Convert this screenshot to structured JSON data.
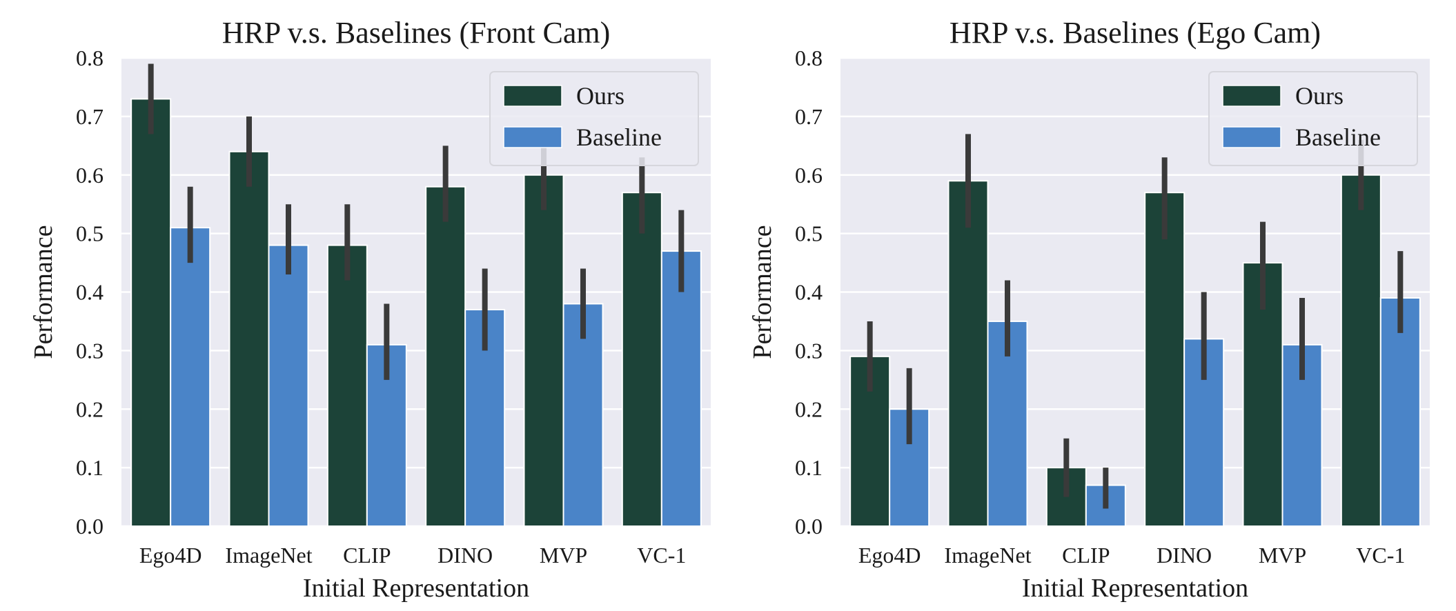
{
  "colors": {
    "ours": "#1c4338",
    "baseline": "#4a84c8",
    "error": "#3a3a3a",
    "plot_bg": "#eaeaf2",
    "grid": "#ffffff"
  },
  "chart_data": [
    {
      "type": "bar",
      "title": "HRP v.s. Baselines (Front Cam)",
      "xlabel": "Initial Representation",
      "ylabel": "Performance",
      "ylim": [
        0,
        0.8
      ],
      "yticks": [
        "0.0",
        "0.1",
        "0.2",
        "0.3",
        "0.4",
        "0.5",
        "0.6",
        "0.7",
        "0.8"
      ],
      "categories": [
        "Ego4D",
        "ImageNet",
        "CLIP",
        "DINO",
        "MVP",
        "VC-1"
      ],
      "legend": {
        "placement": "top-right",
        "entries": [
          "Ours",
          "Baseline"
        ]
      },
      "grid": true,
      "series": [
        {
          "name": "Ours",
          "values": [
            0.73,
            0.64,
            0.48,
            0.58,
            0.6,
            0.57
          ],
          "err_low": [
            0.67,
            0.58,
            0.42,
            0.52,
            0.54,
            0.5
          ],
          "err_high": [
            0.79,
            0.7,
            0.55,
            0.65,
            0.67,
            0.63
          ]
        },
        {
          "name": "Baseline",
          "values": [
            0.51,
            0.48,
            0.31,
            0.37,
            0.38,
            0.47
          ],
          "err_low": [
            0.45,
            0.43,
            0.25,
            0.3,
            0.32,
            0.4
          ],
          "err_high": [
            0.58,
            0.55,
            0.38,
            0.44,
            0.44,
            0.54
          ]
        }
      ]
    },
    {
      "type": "bar",
      "title": "HRP v.s. Baselines (Ego Cam)",
      "xlabel": "Initial Representation",
      "ylabel": "Performance",
      "ylim": [
        0,
        0.8
      ],
      "yticks": [
        "0.0",
        "0.1",
        "0.2",
        "0.3",
        "0.4",
        "0.5",
        "0.6",
        "0.7",
        "0.8"
      ],
      "categories": [
        "Ego4D",
        "ImageNet",
        "CLIP",
        "DINO",
        "MVP",
        "VC-1"
      ],
      "legend": {
        "placement": "top-right",
        "entries": [
          "Ours",
          "Baseline"
        ]
      },
      "grid": true,
      "series": [
        {
          "name": "Ours",
          "values": [
            0.29,
            0.59,
            0.1,
            0.57,
            0.45,
            0.6
          ],
          "err_low": [
            0.23,
            0.51,
            0.05,
            0.49,
            0.37,
            0.54
          ],
          "err_high": [
            0.35,
            0.67,
            0.15,
            0.63,
            0.52,
            0.66
          ]
        },
        {
          "name": "Baseline",
          "values": [
            0.2,
            0.35,
            0.07,
            0.32,
            0.31,
            0.39
          ],
          "err_low": [
            0.14,
            0.29,
            0.03,
            0.25,
            0.25,
            0.33
          ],
          "err_high": [
            0.27,
            0.42,
            0.1,
            0.4,
            0.39,
            0.47
          ]
        }
      ]
    }
  ]
}
